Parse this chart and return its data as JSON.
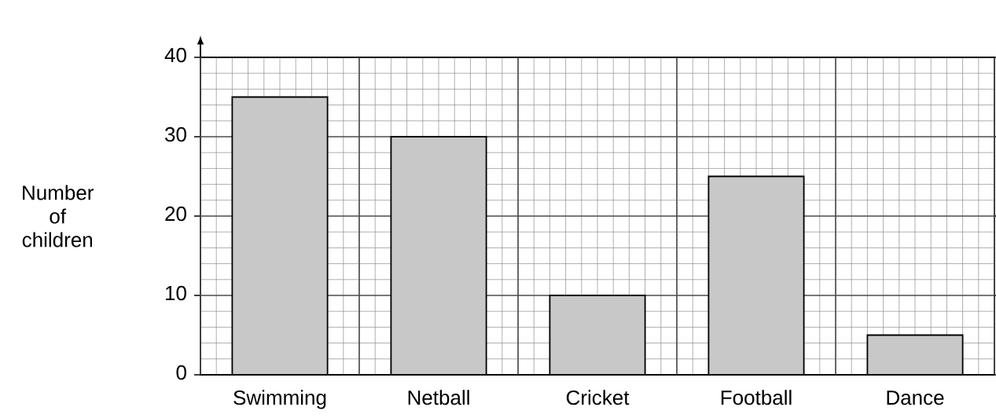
{
  "chart_data": {
    "type": "bar",
    "ylabel": "Number of children",
    "categories": [
      "Swimming",
      "Netball",
      "Cricket",
      "Football",
      "Dance"
    ],
    "values": [
      35,
      30,
      10,
      25,
      5
    ],
    "color": "#c8c8c8",
    "ylim": [
      0,
      40
    ],
    "yticks": [
      0,
      10,
      20,
      30,
      40
    ],
    "grid": true
  }
}
